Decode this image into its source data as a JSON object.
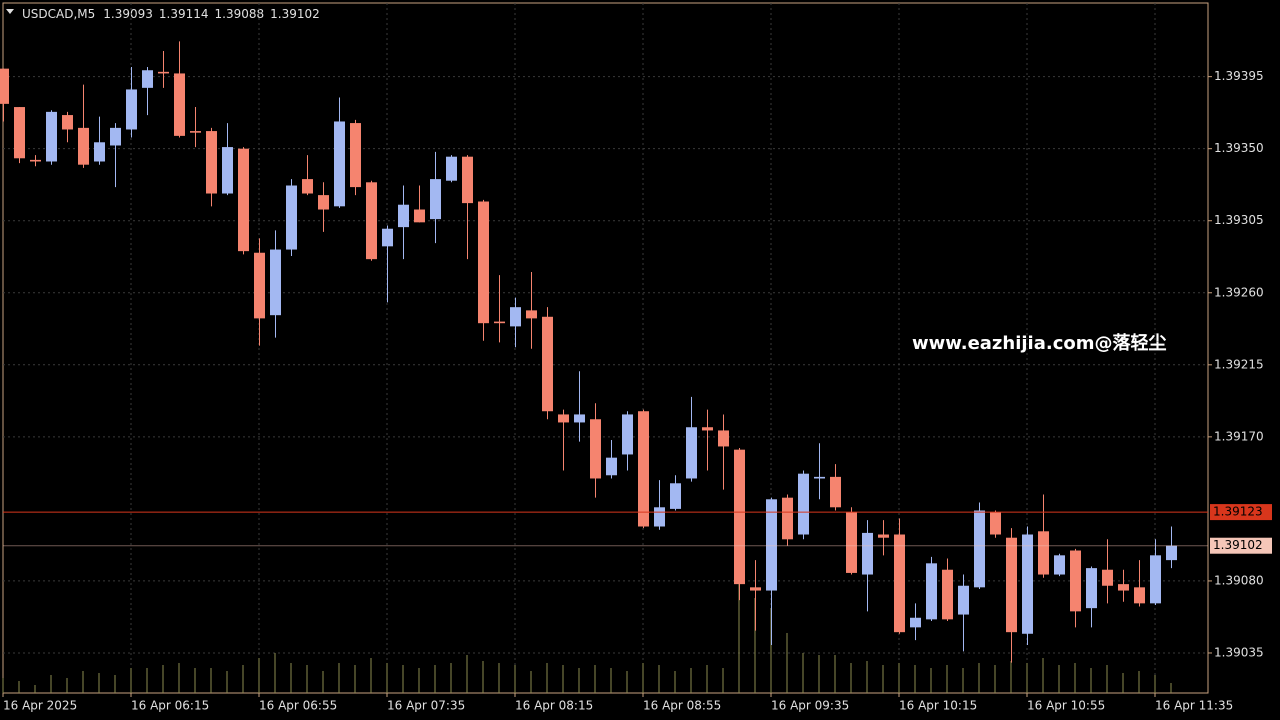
{
  "chart_data": {
    "type": "candlestick",
    "symbol": "USDCAD,M5",
    "watermark": "www.eazhijia.com@落轻尘",
    "categories": [
      "16 Apr 2025",
      null,
      null,
      null,
      null,
      null,
      null,
      null,
      "16 Apr 06:15",
      null,
      null,
      null,
      null,
      null,
      null,
      null,
      "16 Apr 06:55",
      null,
      null,
      null,
      null,
      null,
      null,
      null,
      "16 Apr 07:35",
      null,
      null,
      null,
      null,
      null,
      null,
      null,
      "16 Apr 08:15",
      null,
      null,
      null,
      null,
      null,
      null,
      null,
      "16 Apr 08:55",
      null,
      null,
      null,
      null,
      null,
      null,
      null,
      "16 Apr 09:35",
      null,
      null,
      null,
      null,
      null,
      null,
      null,
      "16 Apr 10:15",
      null,
      null,
      null,
      null,
      null,
      null,
      null,
      "16 Apr 10:55",
      null,
      null,
      null,
      null,
      null,
      null,
      null,
      "16 Apr 11:35",
      null
    ],
    "open": [
      1.394,
      1.39376,
      1.39343,
      1.39342,
      1.39371,
      1.39363,
      1.39342,
      1.39352,
      1.39362,
      1.39388,
      1.39398,
      1.39397,
      1.39361,
      1.39361,
      1.39322,
      1.3935,
      1.39285,
      1.39246,
      1.39287,
      1.39331,
      1.39321,
      1.39314,
      1.39366,
      1.39329,
      1.39289,
      1.39301,
      1.39312,
      1.39306,
      1.3933,
      1.39345,
      1.39317,
      1.39242,
      1.39239,
      1.39249,
      1.39245,
      1.39184,
      1.39179,
      1.39181,
      1.39146,
      1.39159,
      1.39186,
      1.39114,
      1.39125,
      1.39144,
      1.39176,
      1.39174,
      1.39162,
      1.39076,
      1.39074,
      1.39132,
      1.39109,
      1.39144,
      1.39145,
      1.39123,
      1.39084,
      1.39109,
      1.39109,
      1.39051,
      1.39056,
      1.39087,
      1.39059,
      1.39076,
      1.39123,
      1.39107,
      1.39047,
      1.39111,
      1.39084,
      1.39099,
      1.39063,
      1.39087,
      1.39078,
      1.39076,
      1.39066,
      1.39093
    ],
    "high": [
      1.394,
      1.39376,
      1.39346,
      1.39374,
      1.39373,
      1.3939,
      1.3937,
      1.39366,
      1.39401,
      1.39401,
      1.39411,
      1.39417,
      1.39376,
      1.39363,
      1.39366,
      1.39351,
      1.39294,
      1.39299,
      1.39331,
      1.39346,
      1.39329,
      1.39382,
      1.39368,
      1.3933,
      1.39302,
      1.39327,
      1.39327,
      1.39348,
      1.39346,
      1.39346,
      1.39318,
      1.39271,
      1.39257,
      1.39273,
      1.39251,
      1.39187,
      1.39211,
      1.39191,
      1.39168,
      1.39186,
      1.39187,
      1.39143,
      1.39146,
      1.39195,
      1.39187,
      1.39184,
      1.39163,
      1.39093,
      1.39132,
      1.39134,
      1.39149,
      1.39166,
      1.39153,
      1.39126,
      1.39118,
      1.39118,
      1.39119,
      1.39066,
      1.39095,
      1.39094,
      1.39084,
      1.39129,
      1.39124,
      1.39113,
      1.39114,
      1.39134,
      1.39097,
      1.391,
      1.39089,
      1.39106,
      1.39087,
      1.39093,
      1.39106,
      1.39114
    ],
    "low": [
      1.39367,
      1.39341,
      1.39339,
      1.3934,
      1.39354,
      1.39338,
      1.3934,
      1.39326,
      1.39357,
      1.39371,
      1.39388,
      1.39357,
      1.39351,
      1.39314,
      1.39321,
      1.39284,
      1.39227,
      1.39232,
      1.39283,
      1.39321,
      1.39298,
      1.39313,
      1.39321,
      1.3928,
      1.39254,
      1.39281,
      1.39304,
      1.39291,
      1.39329,
      1.39281,
      1.3923,
      1.39229,
      1.39226,
      1.39225,
      1.39181,
      1.39149,
      1.39167,
      1.39132,
      1.39144,
      1.39149,
      1.39113,
      1.39112,
      1.39124,
      1.39142,
      1.39149,
      1.39137,
      1.39068,
      1.39049,
      1.3904,
      1.39102,
      1.39106,
      1.39131,
      1.39124,
      1.39084,
      1.39061,
      1.39096,
      1.39047,
      1.39043,
      1.39055,
      1.39055,
      1.39036,
      1.39075,
      1.39107,
      1.39029,
      1.3904,
      1.39082,
      1.39083,
      1.39051,
      1.39051,
      1.39066,
      1.39067,
      1.39064,
      1.39065,
      1.39088
    ],
    "close": [
      1.39378,
      1.39344,
      1.39342,
      1.39373,
      1.39362,
      1.3934,
      1.39354,
      1.39363,
      1.39387,
      1.39399,
      1.39397,
      1.39358,
      1.3936,
      1.39322,
      1.39351,
      1.39286,
      1.39244,
      1.39287,
      1.39327,
      1.39322,
      1.39312,
      1.39367,
      1.39326,
      1.39281,
      1.393,
      1.39315,
      1.39304,
      1.39331,
      1.39345,
      1.39316,
      1.39241,
      1.39241,
      1.39251,
      1.39244,
      1.39186,
      1.39179,
      1.39184,
      1.39144,
      1.39157,
      1.39184,
      1.39114,
      1.39126,
      1.39141,
      1.39176,
      1.39174,
      1.39164,
      1.39078,
      1.39074,
      1.39131,
      1.39106,
      1.39147,
      1.39145,
      1.39126,
      1.39085,
      1.3911,
      1.39107,
      1.39048,
      1.39057,
      1.39091,
      1.39056,
      1.39077,
      1.39124,
      1.39109,
      1.39048,
      1.39109,
      1.39084,
      1.39096,
      1.39061,
      1.39088,
      1.39077,
      1.39074,
      1.39066,
      1.39096,
      1.39102
    ],
    "volumes": [
      15,
      12,
      8,
      18,
      15,
      22,
      20,
      18,
      25,
      25,
      28,
      30,
      25,
      25,
      22,
      28,
      35,
      40,
      30,
      28,
      22,
      30,
      28,
      35,
      30,
      28,
      25,
      28,
      30,
      38,
      32,
      30,
      28,
      22,
      30,
      28,
      25,
      28,
      25,
      22,
      30,
      28,
      22,
      25,
      28,
      25,
      110,
      95,
      85,
      60,
      40,
      38,
      38,
      30,
      32,
      28,
      30,
      28,
      25,
      28,
      25,
      30,
      28,
      32,
      30,
      35,
      28,
      30,
      25,
      28,
      20,
      22,
      18,
      10
    ],
    "ylim": [
      1.3901,
      1.39441
    ],
    "yticks": [
      1.39395,
      {
        "value": 1.3935,
        "label": "1.39350"
      },
      1.39305,
      {
        "value": 1.3926,
        "label": "1.39260"
      },
      1.39215,
      {
        "value": 1.3917,
        "label": "1.39170"
      },
      {
        "value": 1.3908,
        "label": "1.39080"
      },
      1.39035
    ],
    "ask_line": 1.39123,
    "bid_line": 1.39102,
    "up_color": "#a3b8f2",
    "down_color": "#f5846f",
    "volume_color": "#8c8c50",
    "ask_color": "#d8361c",
    "bid_color": "#f5c6b8",
    "grid": true
  }
}
